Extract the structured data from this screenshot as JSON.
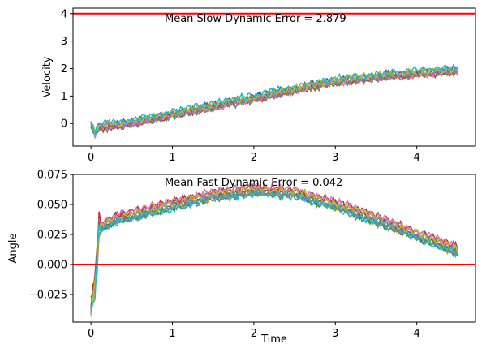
{
  "chart_data": [
    {
      "type": "line",
      "annotation": "Mean Slow Dynamic Error = 2.879",
      "xlabel": "",
      "ylabel": "Velocity",
      "xlim": [
        -0.22,
        4.72
      ],
      "ylim": [
        -0.82,
        4.2
      ],
      "x_ticks": [
        0,
        1,
        2,
        3,
        4
      ],
      "y_ticks": [
        0,
        1,
        2,
        3,
        4
      ],
      "reference_line": {
        "y": 4.0,
        "color": "#ff0000"
      },
      "profile": {
        "x": [
          0,
          0.05,
          0.1,
          0.5,
          1.0,
          1.5,
          2.0,
          2.5,
          3.0,
          3.5,
          4.0,
          4.5
        ],
        "y": [
          0,
          -0.35,
          -0.1,
          0.05,
          0.35,
          0.65,
          0.95,
          1.25,
          1.55,
          1.72,
          1.85,
          1.95
        ]
      },
      "series_count": 10
    },
    {
      "type": "line",
      "annotation": "Mean Fast Dynamic Error = 0.042",
      "xlabel": "Time",
      "ylabel": "Angle",
      "xlim": [
        -0.22,
        4.72
      ],
      "ylim": [
        -0.048,
        0.075
      ],
      "x_ticks": [
        0,
        1,
        2,
        3,
        4
      ],
      "y_ticks": [
        -0.025,
        0.0,
        0.025,
        0.05,
        0.075
      ],
      "y_tick_labels": [
        "−0.025",
        "0.000",
        "0.025",
        "0.050",
        "0.075"
      ],
      "reference_line": {
        "y": 0.0,
        "color": "#ff0000"
      },
      "profile": {
        "x": [
          0,
          0.05,
          0.1,
          0.3,
          0.6,
          1.0,
          1.5,
          2.0,
          2.5,
          3.0,
          3.5,
          4.0,
          4.5
        ],
        "y": [
          -0.035,
          -0.02,
          0.03,
          0.038,
          0.043,
          0.05,
          0.058,
          0.062,
          0.06,
          0.05,
          0.038,
          0.025,
          0.012
        ]
      },
      "series_count": 10
    }
  ],
  "colors": [
    "#1f77b4",
    "#ff7f0e",
    "#2ca02c",
    "#d62728",
    "#9467bd",
    "#8c564b",
    "#e377c2",
    "#7f7f7f",
    "#bcbd22",
    "#17becf"
  ]
}
